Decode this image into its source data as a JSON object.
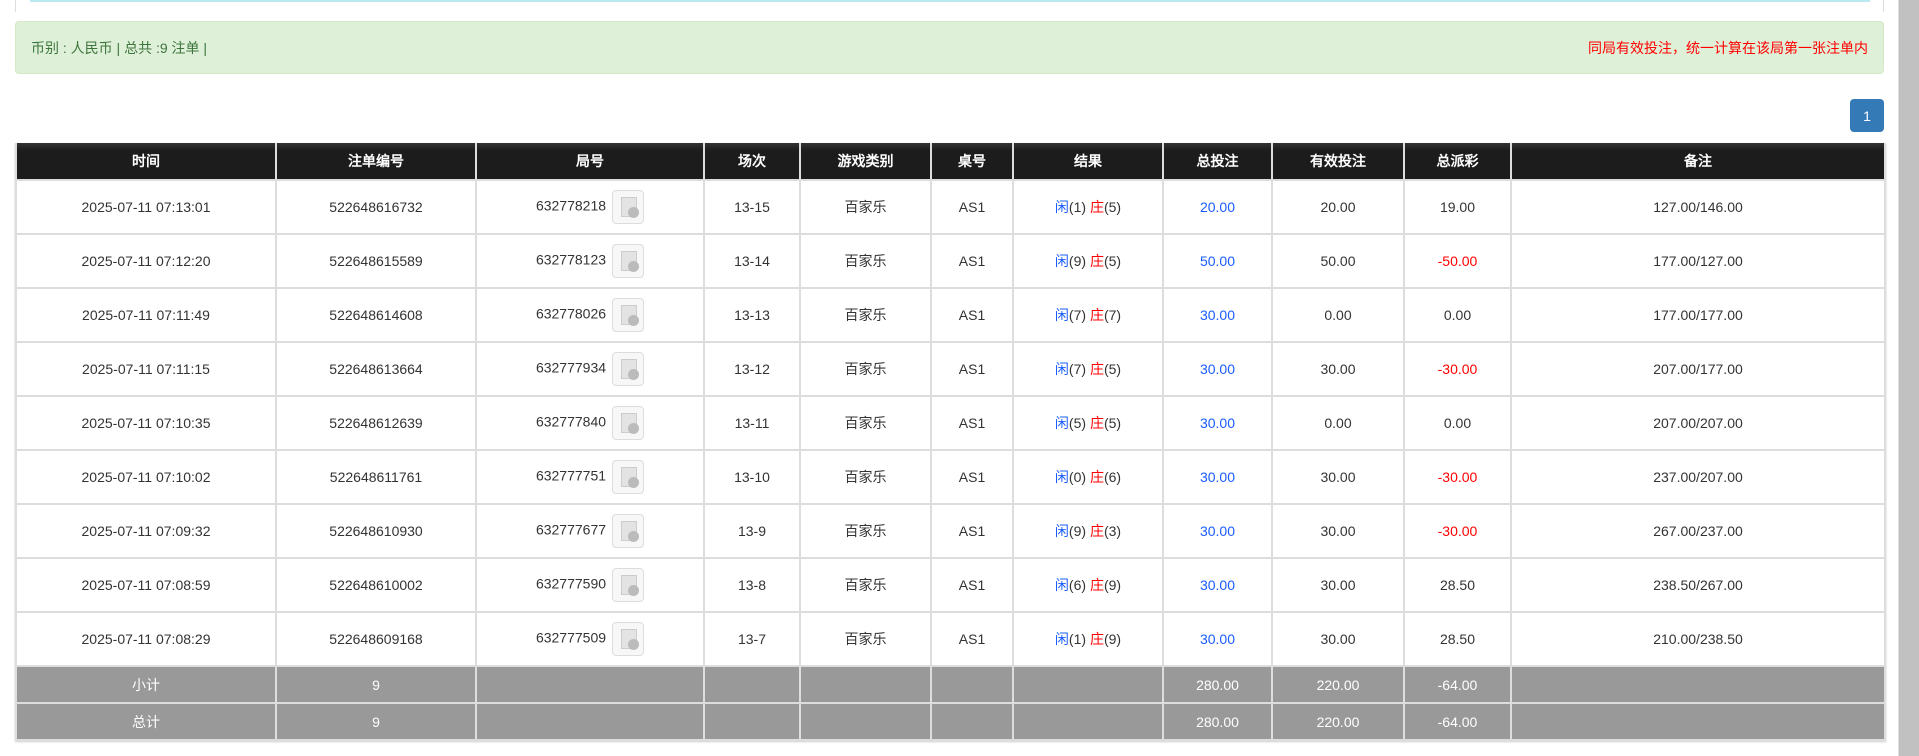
{
  "alert": {
    "left": "币别 : 人民币 | 总共 :9 注单 |",
    "right": "同局有效投注，统一计算在该局第一张注单内"
  },
  "pagination": {
    "current": "1"
  },
  "colors": {
    "player": "#1a5cff",
    "banker": "#ff0000",
    "negative": "#ff0000",
    "alert_bg": "#dff0d8",
    "header_bg": "#1c1c1c",
    "summary_bg": "#999999",
    "page_button": "#337ab7"
  },
  "table": {
    "headers": [
      "时间",
      "注单编号",
      "局号",
      "场次",
      "游戏类别",
      "桌号",
      "结果",
      "总投注",
      "有效投注",
      "总派彩",
      "备注"
    ],
    "rows": [
      {
        "time": "2025-07-11 07:13:01",
        "bet_id": "522648616732",
        "round": "632778218",
        "shoe": "13-15",
        "game": "百家乐",
        "table": "AS1",
        "p": "闲",
        "pv": "(1)",
        "b": "庄",
        "bv": "(5)",
        "total": "20.00",
        "valid": "20.00",
        "payout": "19.00",
        "payout_neg": false,
        "note": "127.00/146.00"
      },
      {
        "time": "2025-07-11 07:12:20",
        "bet_id": "522648615589",
        "round": "632778123",
        "shoe": "13-14",
        "game": "百家乐",
        "table": "AS1",
        "p": "闲",
        "pv": "(9)",
        "b": "庄",
        "bv": "(5)",
        "total": "50.00",
        "valid": "50.00",
        "payout": "-50.00",
        "payout_neg": true,
        "note": "177.00/127.00"
      },
      {
        "time": "2025-07-11 07:11:49",
        "bet_id": "522648614608",
        "round": "632778026",
        "shoe": "13-13",
        "game": "百家乐",
        "table": "AS1",
        "p": "闲",
        "pv": "(7)",
        "b": "庄",
        "bv": "(7)",
        "total": "30.00",
        "valid": "0.00",
        "payout": "0.00",
        "payout_neg": false,
        "note": "177.00/177.00"
      },
      {
        "time": "2025-07-11 07:11:15",
        "bet_id": "522648613664",
        "round": "632777934",
        "shoe": "13-12",
        "game": "百家乐",
        "table": "AS1",
        "p": "闲",
        "pv": "(7)",
        "b": "庄",
        "bv": "(5)",
        "total": "30.00",
        "valid": "30.00",
        "payout": "-30.00",
        "payout_neg": true,
        "note": "207.00/177.00"
      },
      {
        "time": "2025-07-11 07:10:35",
        "bet_id": "522648612639",
        "round": "632777840",
        "shoe": "13-11",
        "game": "百家乐",
        "table": "AS1",
        "p": "闲",
        "pv": "(5)",
        "b": "庄",
        "bv": "(5)",
        "total": "30.00",
        "valid": "0.00",
        "payout": "0.00",
        "payout_neg": false,
        "note": "207.00/207.00"
      },
      {
        "time": "2025-07-11 07:10:02",
        "bet_id": "522648611761",
        "round": "632777751",
        "shoe": "13-10",
        "game": "百家乐",
        "table": "AS1",
        "p": "闲",
        "pv": "(0)",
        "b": "庄",
        "bv": "(6)",
        "total": "30.00",
        "valid": "30.00",
        "payout": "-30.00",
        "payout_neg": true,
        "note": "237.00/207.00"
      },
      {
        "time": "2025-07-11 07:09:32",
        "bet_id": "522648610930",
        "round": "632777677",
        "shoe": "13-9",
        "game": "百家乐",
        "table": "AS1",
        "p": "闲",
        "pv": "(9)",
        "b": "庄",
        "bv": "(3)",
        "total": "30.00",
        "valid": "30.00",
        "payout": "-30.00",
        "payout_neg": true,
        "note": "267.00/237.00"
      },
      {
        "time": "2025-07-11 07:08:59",
        "bet_id": "522648610002",
        "round": "632777590",
        "shoe": "13-8",
        "game": "百家乐",
        "table": "AS1",
        "p": "闲",
        "pv": "(6)",
        "b": "庄",
        "bv": "(9)",
        "total": "30.00",
        "valid": "30.00",
        "payout": "28.50",
        "payout_neg": false,
        "note": "238.50/267.00"
      },
      {
        "time": "2025-07-11 07:08:29",
        "bet_id": "522648609168",
        "round": "632777509",
        "shoe": "13-7",
        "game": "百家乐",
        "table": "AS1",
        "p": "闲",
        "pv": "(1)",
        "b": "庄",
        "bv": "(9)",
        "total": "30.00",
        "valid": "30.00",
        "payout": "28.50",
        "payout_neg": false,
        "note": "210.00/238.50"
      }
    ],
    "summary": [
      {
        "label": "小计",
        "count": "9",
        "total": "280.00",
        "valid": "220.00",
        "payout": "-64.00"
      },
      {
        "label": "总计",
        "count": "9",
        "total": "280.00",
        "valid": "220.00",
        "payout": "-64.00"
      }
    ]
  }
}
